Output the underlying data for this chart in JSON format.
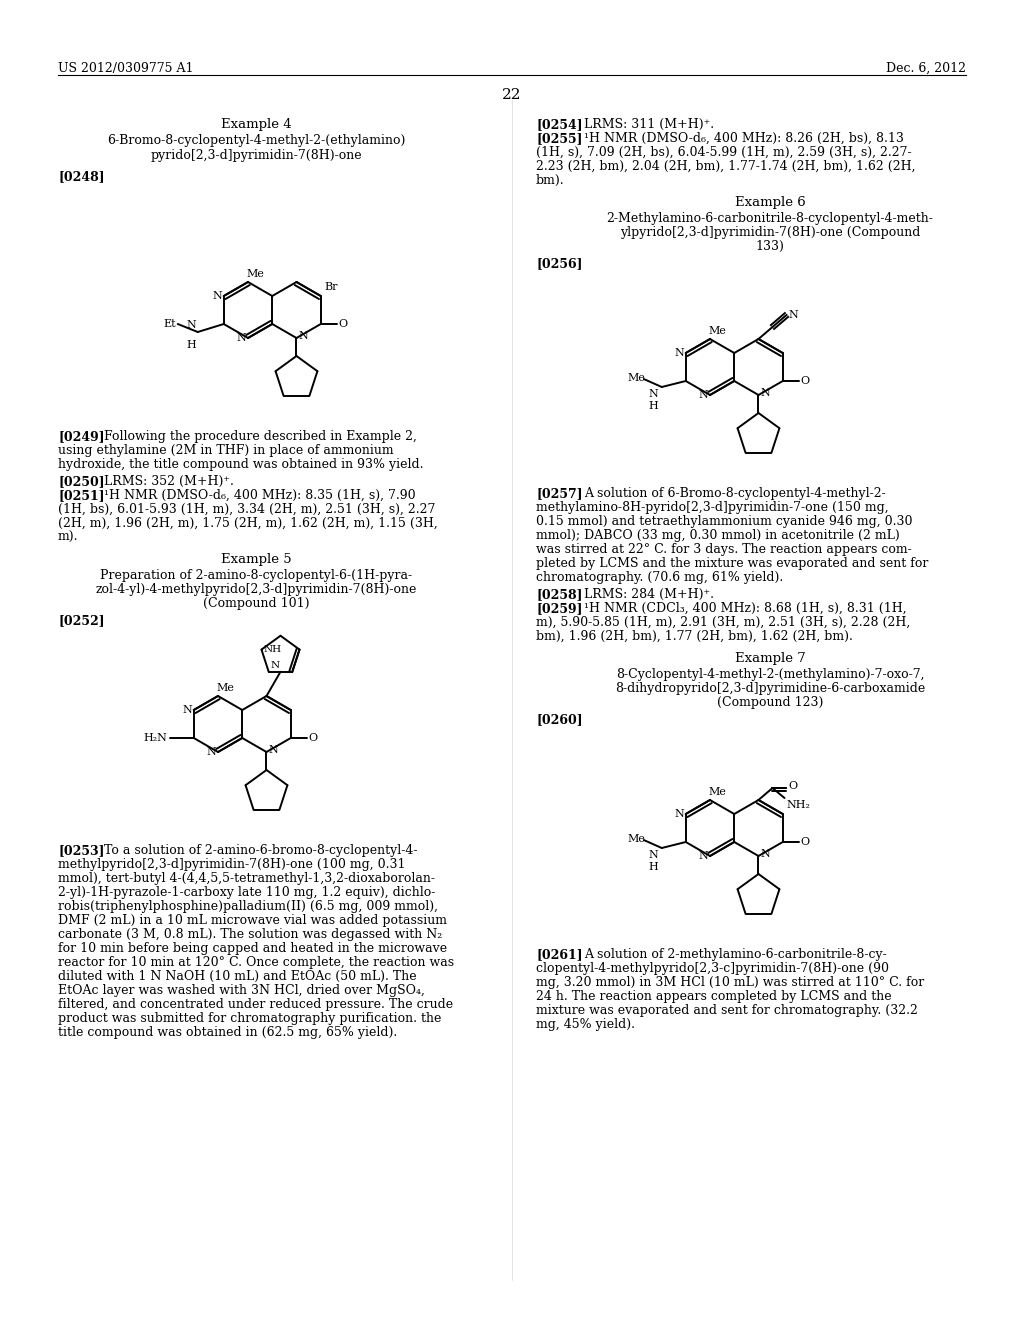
{
  "background_color": "#ffffff",
  "page_number": "22",
  "header_left": "US 2012/0309775 A1",
  "header_right": "Dec. 6, 2012"
}
